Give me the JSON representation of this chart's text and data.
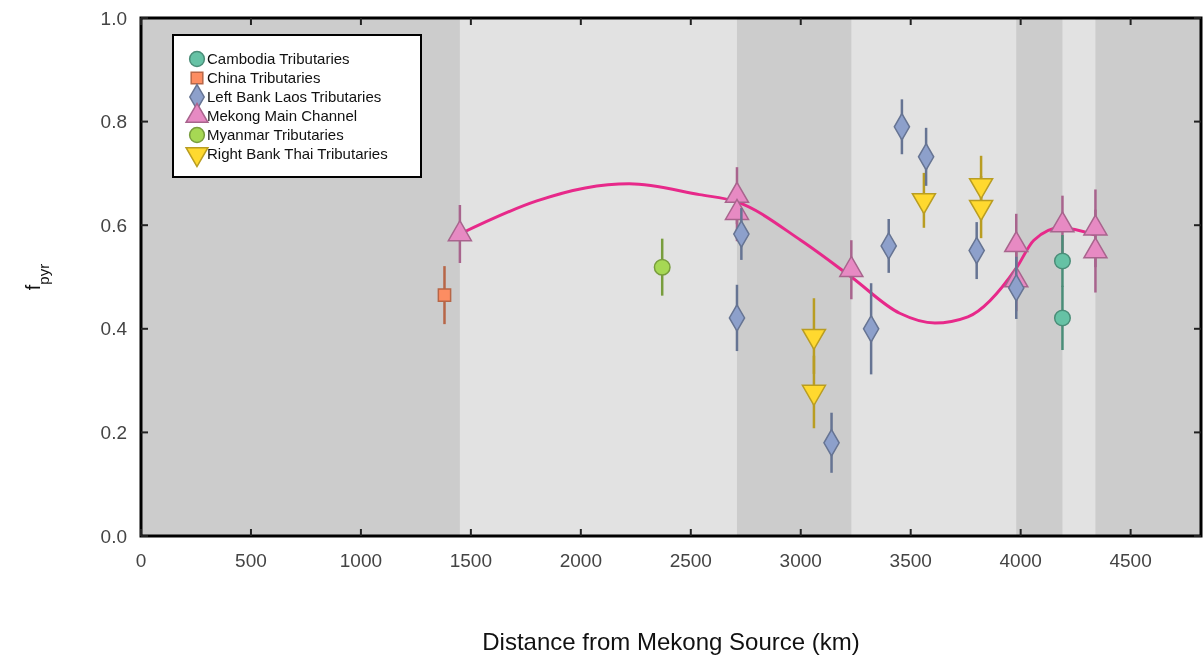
{
  "chart_data": {
    "type": "scatter",
    "xlabel": "Distance from Mekong Source (km)",
    "ylabel": "f$_{pyr}$",
    "xlim": [
      0,
      4820
    ],
    "ylim": [
      0,
      1
    ],
    "xticks": [
      0,
      500,
      1000,
      1500,
      2000,
      2500,
      3000,
      3500,
      4000,
      4500
    ],
    "yticks": [
      {
        "value": 0,
        "label": "0.0"
      },
      {
        "value": 0.2,
        "label": "0.2"
      },
      {
        "value": 0.4,
        "label": "0.4"
      },
      {
        "value": 0.6,
        "label": "0.6"
      },
      {
        "value": 0.8,
        "label": "0.8"
      },
      {
        "value": 1,
        "label": "1.0"
      }
    ],
    "grid": false,
    "legend": "top left",
    "bands": [
      {
        "axis": "x",
        "from": 0,
        "to": 1450,
        "color": "#cccccc"
      },
      {
        "axis": "x",
        "from": 2710,
        "to": 3230,
        "color": "#cccccc"
      },
      {
        "axis": "x",
        "from": 3980,
        "to": 4190,
        "color": "#cccccc"
      },
      {
        "axis": "x",
        "from": 4340,
        "to": 4820,
        "color": "#cccccc"
      }
    ],
    "series": [
      {
        "name": "Cambodia Tributaries",
        "marker": "circle",
        "color": "#66c2a5",
        "x": [
          4190,
          4190
        ],
        "values": [
          0.531,
          0.421
        ],
        "errors": [
          0.05,
          0.062
        ]
      },
      {
        "name": "China Tributaries",
        "marker": "square",
        "color": "#fc8d62",
        "x": [
          1380
        ],
        "values": [
          0.465
        ],
        "errors": [
          0.056
        ]
      },
      {
        "name": "Left Bank Laos Tributaries",
        "marker": "diamond",
        "color": "#8da0cb",
        "x": [
          2710,
          2730,
          3140,
          3320,
          3400,
          3460,
          3570,
          3800,
          3980
        ],
        "values": [
          0.421,
          0.583,
          0.18,
          0.4,
          0.56,
          0.79,
          0.732,
          0.551,
          0.479
        ],
        "errors": [
          0.064,
          0.05,
          0.058,
          0.088,
          0.052,
          0.053,
          0.056,
          0.055,
          0.06
        ]
      },
      {
        "name": "Mekong Main Channel",
        "marker": "triangle",
        "color": "#e78ac3",
        "x": [
          1450,
          2710,
          2710,
          3230,
          3980,
          3980,
          4190,
          4340,
          4340
        ],
        "values": [
          0.583,
          0.657,
          0.624,
          0.514,
          0.562,
          0.494,
          0.6,
          0.594,
          0.55
        ],
        "errors": [
          0.056,
          0.055,
          0.055,
          0.057,
          0.06,
          0.06,
          0.057,
          0.075,
          0.08
        ]
      },
      {
        "name": "Myanmar Tributaries",
        "marker": "circle",
        "color": "#a6d854",
        "x": [
          2370
        ],
        "values": [
          0.519
        ],
        "errors": [
          0.055
        ]
      },
      {
        "name": "Right Bank Thai Tributaries",
        "marker": "triangle-down",
        "color": "#ffd92f",
        "x": [
          3060,
          3060,
          3560,
          3820,
          3820
        ],
        "values": [
          0.386,
          0.278,
          0.648,
          0.677,
          0.635
        ],
        "errors": [
          0.073,
          0.07,
          0.053,
          0.057,
          0.06
        ]
      },
      {
        "type": "line",
        "color": "#e7298a",
        "x": [
          1450,
          1800,
          2020,
          2220,
          2540,
          2710,
          3000,
          3230,
          3450,
          3610,
          3760,
          3980,
          4060,
          4180,
          4340
        ],
        "values": [
          0.583,
          0.647,
          0.672,
          0.68,
          0.659,
          0.645,
          0.571,
          0.5,
          0.43,
          0.411,
          0.423,
          0.517,
          0.571,
          0.595,
          0.581
        ]
      }
    ]
  }
}
